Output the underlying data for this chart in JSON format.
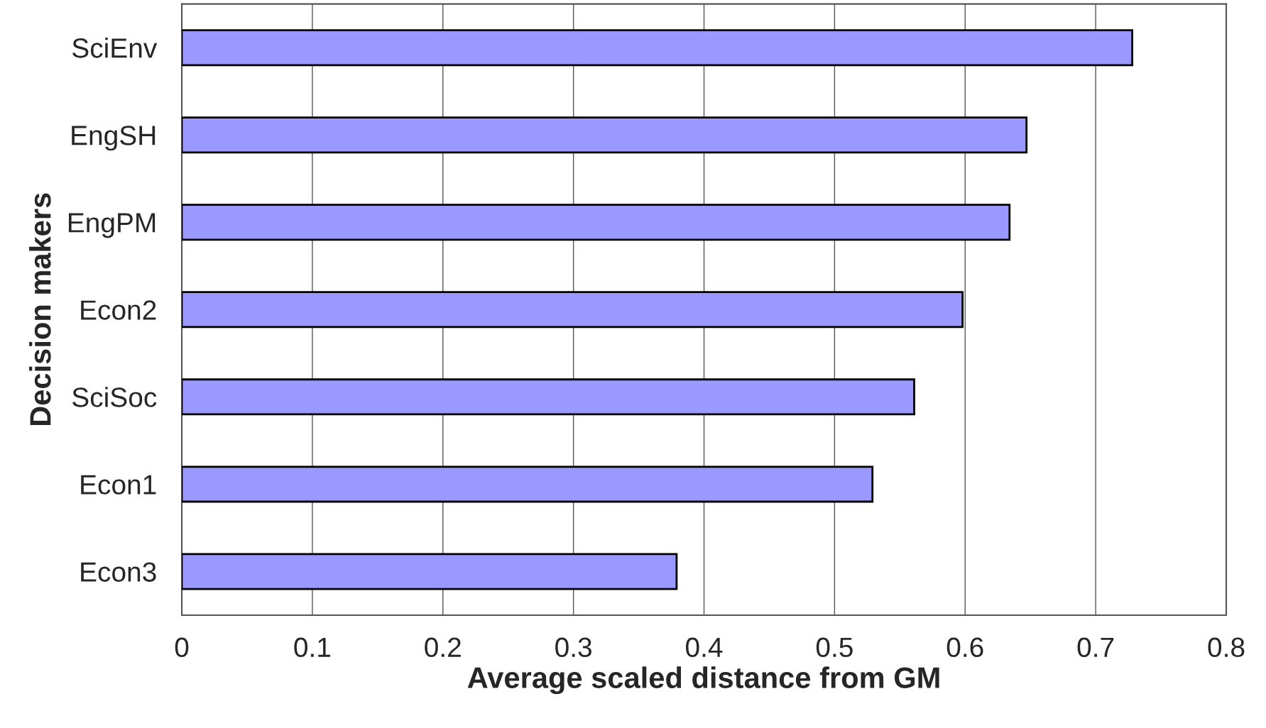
{
  "chart_data": {
    "type": "bar",
    "orientation": "horizontal",
    "xlabel": "Average scaled distance from GM",
    "ylabel": "Decision makers",
    "categories": [
      "SciEnv",
      "EngSH",
      "EngPM",
      "Econ2",
      "SciSoc",
      "Econ1",
      "Econ3"
    ],
    "values": [
      0.728,
      0.647,
      0.634,
      0.598,
      0.561,
      0.529,
      0.379
    ],
    "color": "#9999ff",
    "xlim": [
      0,
      0.8
    ],
    "xticks": [
      0,
      0.1,
      0.2,
      0.3,
      0.4,
      0.5,
      0.6,
      0.7,
      0.8
    ],
    "grid": "x",
    "legend": false
  }
}
